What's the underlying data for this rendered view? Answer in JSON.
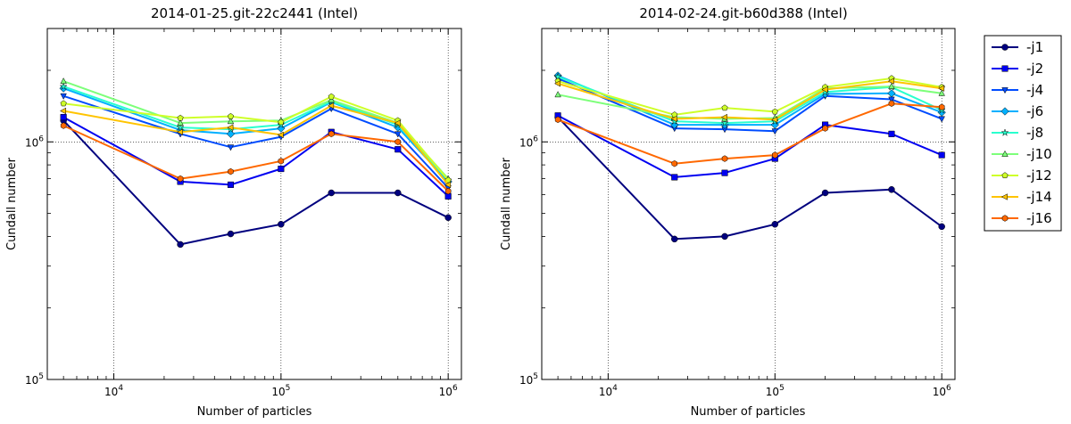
{
  "chart_data": [
    {
      "type": "line",
      "title": "2014-01-25.git-22c2441 (Intel)",
      "xlabel": "Number of particles",
      "ylabel": "Cundall number",
      "x_scale": "log",
      "y_scale": "log",
      "xlim": [
        4000,
        1200000
      ],
      "ylim": [
        100000,
        3000000
      ],
      "grid": true,
      "x_ticks": [
        10000,
        100000,
        1000000
      ],
      "x_tick_labels": [
        {
          "base": "10",
          "exp": "4"
        },
        {
          "base": "10",
          "exp": "5"
        },
        {
          "base": "10",
          "exp": "6"
        }
      ],
      "y_ticks": [
        100000,
        1000000
      ],
      "y_tick_labels": [
        {
          "base": "10",
          "exp": "5"
        },
        {
          "base": "10",
          "exp": "6"
        }
      ],
      "x": [
        5000,
        25000,
        50000,
        100000,
        200000,
        500000,
        1000000
      ],
      "series": [
        {
          "name": "-j1",
          "color": "#00007f",
          "marker": "circle",
          "values": [
            1230000,
            370000,
            410000,
            450000,
            610000,
            610000,
            480000
          ]
        },
        {
          "name": "-j2",
          "color": "#0000f1",
          "marker": "square",
          "values": [
            1270000,
            680000,
            660000,
            770000,
            1100000,
            930000,
            590000
          ]
        },
        {
          "name": "-j4",
          "color": "#004cff",
          "marker": "triangle-down",
          "values": [
            1560000,
            1080000,
            950000,
            1050000,
            1380000,
            1080000,
            640000
          ]
        },
        {
          "name": "-j6",
          "color": "#00b0ff",
          "marker": "diamond",
          "values": [
            1680000,
            1120000,
            1080000,
            1140000,
            1470000,
            1150000,
            680000
          ]
        },
        {
          "name": "-j8",
          "color": "#29ffce",
          "marker": "star",
          "values": [
            1710000,
            1150000,
            1130000,
            1180000,
            1480000,
            1180000,
            690000
          ]
        },
        {
          "name": "-j10",
          "color": "#7dff7a",
          "marker": "triangle-up",
          "values": [
            1800000,
            1200000,
            1220000,
            1230000,
            1500000,
            1200000,
            700000
          ]
        },
        {
          "name": "-j12",
          "color": "#ceff29",
          "marker": "pentagon",
          "values": [
            1450000,
            1260000,
            1280000,
            1210000,
            1550000,
            1230000,
            690000
          ]
        },
        {
          "name": "-j14",
          "color": "#ffc400",
          "marker": "triangle-left",
          "values": [
            1350000,
            1100000,
            1150000,
            1070000,
            1420000,
            1200000,
            660000
          ]
        },
        {
          "name": "-j16",
          "color": "#ff6800",
          "marker": "hexagon",
          "values": [
            1170000,
            700000,
            750000,
            830000,
            1080000,
            1000000,
            620000
          ]
        }
      ]
    },
    {
      "type": "line",
      "title": "2014-02-24.git-b60d388 (Intel)",
      "xlabel": "Number of particles",
      "ylabel": "Cundall number",
      "x_scale": "log",
      "y_scale": "log",
      "xlim": [
        4000,
        1200000
      ],
      "ylim": [
        100000,
        3000000
      ],
      "grid": true,
      "x_ticks": [
        10000,
        100000,
        1000000
      ],
      "x_tick_labels": [
        {
          "base": "10",
          "exp": "4"
        },
        {
          "base": "10",
          "exp": "5"
        },
        {
          "base": "10",
          "exp": "6"
        }
      ],
      "y_ticks": [
        100000,
        1000000
      ],
      "y_tick_labels": [
        {
          "base": "10",
          "exp": "5"
        },
        {
          "base": "10",
          "exp": "6"
        }
      ],
      "x": [
        5000,
        25000,
        50000,
        100000,
        200000,
        500000,
        1000000
      ],
      "series": [
        {
          "name": "-j1",
          "color": "#00007f",
          "marker": "circle",
          "values": [
            1270000,
            390000,
            400000,
            450000,
            610000,
            630000,
            440000
          ]
        },
        {
          "name": "-j2",
          "color": "#0000f1",
          "marker": "square",
          "values": [
            1290000,
            710000,
            740000,
            850000,
            1180000,
            1080000,
            880000
          ]
        },
        {
          "name": "-j4",
          "color": "#004cff",
          "marker": "triangle-down",
          "values": [
            1850000,
            1140000,
            1130000,
            1110000,
            1560000,
            1510000,
            1250000
          ]
        },
        {
          "name": "-j6",
          "color": "#00b0ff",
          "marker": "diamond",
          "values": [
            1900000,
            1180000,
            1180000,
            1180000,
            1590000,
            1600000,
            1330000
          ]
        },
        {
          "name": "-j8",
          "color": "#29ffce",
          "marker": "star",
          "values": [
            1880000,
            1220000,
            1200000,
            1220000,
            1620000,
            1700000,
            1360000
          ]
        },
        {
          "name": "-j10",
          "color": "#7dff7a",
          "marker": "triangle-up",
          "values": [
            1580000,
            1270000,
            1250000,
            1260000,
            1680000,
            1710000,
            1600000
          ]
        },
        {
          "name": "-j12",
          "color": "#ceff29",
          "marker": "pentagon",
          "values": [
            1800000,
            1300000,
            1390000,
            1340000,
            1700000,
            1850000,
            1700000
          ]
        },
        {
          "name": "-j14",
          "color": "#ffc400",
          "marker": "triangle-left",
          "values": [
            1760000,
            1250000,
            1270000,
            1240000,
            1660000,
            1800000,
            1680000
          ]
        },
        {
          "name": "-j16",
          "color": "#ff6800",
          "marker": "hexagon",
          "values": [
            1240000,
            810000,
            850000,
            880000,
            1140000,
            1450000,
            1400000
          ]
        }
      ]
    }
  ],
  "legend": {
    "placement": "outside-right",
    "entries": [
      "-j1",
      "-j2",
      "-j4",
      "-j6",
      "-j8",
      "-j10",
      "-j12",
      "-j14",
      "-j16"
    ]
  }
}
